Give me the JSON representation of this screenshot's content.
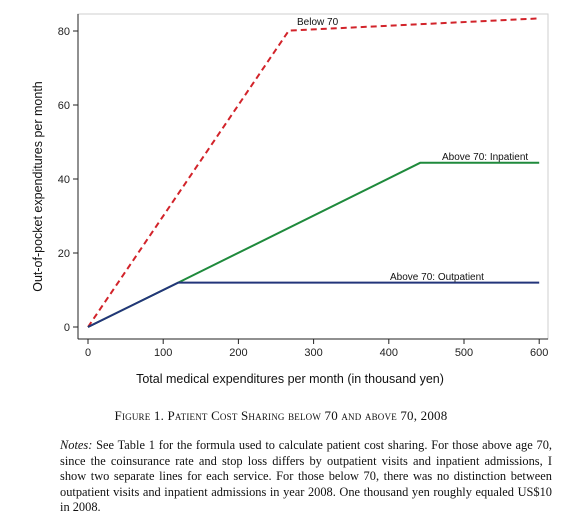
{
  "chart_data": {
    "type": "line",
    "xlabel": "Total medical expenditures per month (in thousand yen)",
    "ylabel": "Out-of-pocket expenditures per month",
    "xlim": [
      0,
      600
    ],
    "ylim": [
      0,
      84
    ],
    "x_ticks": [
      0,
      100,
      200,
      300,
      400,
      500,
      600
    ],
    "y_ticks": [
      0,
      20,
      40,
      60,
      80
    ],
    "grid": false,
    "series": [
      {
        "name": "Below 70",
        "color": "#d2232a",
        "style": "dashed",
        "points": [
          [
            0,
            0
          ],
          [
            267,
            80.1
          ],
          [
            600,
            83.4
          ]
        ]
      },
      {
        "name": "Above 70: Inpatient",
        "color": "#1f8a3c",
        "style": "solid",
        "points": [
          [
            0,
            0
          ],
          [
            120,
            12
          ],
          [
            442,
            44.4
          ],
          [
            600,
            44.4
          ]
        ]
      },
      {
        "name": "Above 70: Outpatient",
        "color": "#23357a",
        "style": "solid",
        "points": [
          [
            0,
            0
          ],
          [
            120,
            12
          ],
          [
            600,
            12
          ]
        ]
      }
    ]
  },
  "caption": {
    "title": "Figure 1. Patient Cost Sharing below 70 and above 70, 2008",
    "notes_label": "Notes:",
    "notes_text": " See Table 1 for the formula used to calculate patient cost sharing. For those above age 70, since the coinsurance rate and stop loss differs by outpatient visits and inpatient admissions, I show two separate lines for each service. For those below 70, there was no distinction between outpatient visits and inpatient admissions in year 2008. One thousand yen roughly equaled US$10 in 2008."
  }
}
